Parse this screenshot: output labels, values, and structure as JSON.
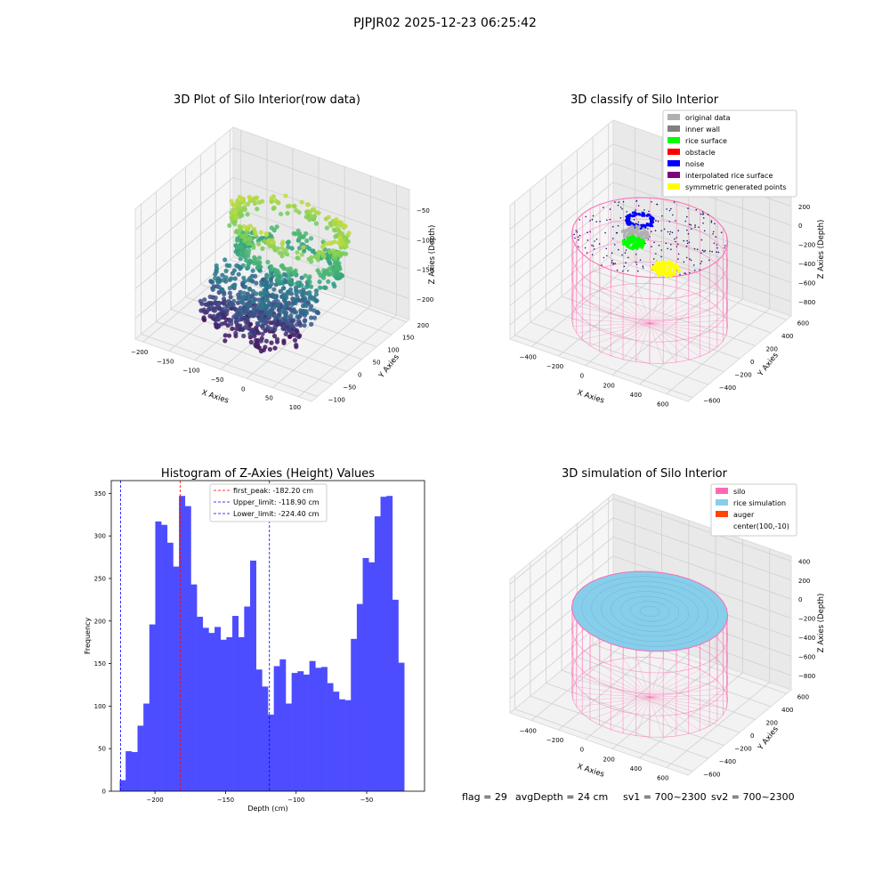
{
  "figure_title": "PJPJR02 2025-12-23 06:25:42",
  "footer": {
    "flag": "flag = 29",
    "avg_depth": "avgDepth = 24 cm",
    "sv1": "sv1 = 700~2300",
    "sv2": "sv2 = 700~2300"
  },
  "chart_data": [
    {
      "type": "scatter",
      "projection": "3d",
      "title": "3D Plot of Silo Interior(row data)",
      "xlabel": "X Axies",
      "ylabel": "Y Axies",
      "zlabel": "Z Axies (Depth)",
      "x_ticks": [
        -200,
        -150,
        -100,
        -50,
        0,
        50,
        100
      ],
      "y_ticks": [
        -100,
        -50,
        0,
        50,
        100,
        150,
        200
      ],
      "z_ticks": [
        -50,
        -100,
        -150,
        -200
      ],
      "xlim": [
        -215,
        125
      ],
      "ylim": [
        -120,
        210
      ],
      "zlim": [
        -235,
        -15
      ],
      "colormap": "viridis",
      "structures": [
        {
          "name": "",
          "kind": "ring",
          "center": [
            -10,
            40
          ],
          "radius": 95,
          "z": -50
        },
        {
          "name": "",
          "kind": "ring",
          "center": [
            -10,
            40
          ],
          "radius": 85,
          "z": -100
        },
        {
          "name": "",
          "kind": "blob",
          "center": [
            -40,
            10
          ],
          "radius": 90,
          "z": -160
        },
        {
          "name": "",
          "kind": "blob",
          "center": [
            -60,
            0
          ],
          "radius": 85,
          "z": -205
        }
      ]
    },
    {
      "type": "scatter",
      "projection": "3d",
      "title": "3D classify of Silo Interior",
      "xlabel": "X Axies",
      "ylabel": "Y Axies",
      "zlabel": "Z Axies (Depth)",
      "x_ticks": [
        -400,
        -200,
        0,
        200,
        400,
        600
      ],
      "y_ticks": [
        -600,
        -400,
        -200,
        0,
        200,
        400,
        600
      ],
      "z_ticks": [
        200,
        0,
        -200,
        -400,
        -600,
        -800
      ],
      "xlim": [
        -560,
        760
      ],
      "ylim": [
        -660,
        660
      ],
      "zlim": [
        -950,
        450
      ],
      "legend_position": "upper right",
      "legend": [
        {
          "label": "original data",
          "color": "#b0b0b0"
        },
        {
          "label": "inner wall",
          "color": "#808080"
        },
        {
          "label": "rice surface",
          "color": "#00ff00"
        },
        {
          "label": "obstacle",
          "color": "#ff0000"
        },
        {
          "label": "noise",
          "color": "#0000ff"
        },
        {
          "label": "interpolated rice surface",
          "color": "#800080"
        },
        {
          "label": "symmetric generated points",
          "color": "#ffff00"
        }
      ],
      "silo": {
        "center": [
          100,
          -10
        ],
        "radius": 500,
        "z_top": 0,
        "z_bottom": -900,
        "color": "#ff69b4"
      },
      "clusters": [
        {
          "name": "noise",
          "center": [
            -60,
            140
          ],
          "radius": 90,
          "z": 0,
          "color": "#0000ff"
        },
        {
          "name": "original data",
          "center": [
            -60,
            80
          ],
          "radius": 85,
          "z": -100,
          "color": "#b0b0b0"
        },
        {
          "name": "rice surface",
          "center": [
            -60,
            60
          ],
          "radius": 70,
          "z": -180,
          "color": "#00ff00"
        },
        {
          "name": "symmetric generated points",
          "center": [
            260,
            -80
          ],
          "radius": 90,
          "z": -200,
          "color": "#ffff00"
        }
      ]
    },
    {
      "type": "bar",
      "title": "Histogram of Z-Axies (Height) Values",
      "xlabel": "Depth (cm)",
      "ylabel": "Frequency",
      "bin_start": -225,
      "bin_width": 4.2,
      "values": [
        13,
        47,
        46,
        77,
        103,
        196,
        317,
        313,
        292,
        264,
        347,
        335,
        243,
        205,
        192,
        186,
        193,
        178,
        181,
        206,
        181,
        217,
        271,
        143,
        123,
        90,
        147,
        155,
        103,
        139,
        141,
        137,
        153,
        145,
        146,
        127,
        117,
        108,
        107,
        179,
        220,
        274,
        269,
        323,
        346,
        347,
        225,
        151
      ],
      "xlim": [
        -231,
        -9
      ],
      "ylim": [
        0,
        365
      ],
      "x_ticks": [
        -200,
        -150,
        -100,
        -50
      ],
      "y_ticks": [
        0,
        50,
        100,
        150,
        200,
        250,
        300,
        350
      ],
      "legend_position": "top-center",
      "reference_lines": [
        {
          "label": "first_peak: -182.20 cm",
          "x": -182.2,
          "color": "#ff0000"
        },
        {
          "label": "Upper_limit: -118.90 cm",
          "x": -118.9,
          "color": "#0000ff"
        },
        {
          "label": "Lower_limit: -224.40 cm",
          "x": -224.4,
          "color": "#0000ff"
        }
      ],
      "bar_color": "#4d4dff"
    },
    {
      "type": "surface",
      "projection": "3d",
      "title": "3D simulation of Silo Interior",
      "xlabel": "X Axies",
      "ylabel": "Y Axies",
      "zlabel": "Z Axies (Depth)",
      "x_ticks": [
        -400,
        -200,
        0,
        200,
        400,
        600
      ],
      "y_ticks": [
        -600,
        -400,
        -200,
        0,
        200,
        400,
        600
      ],
      "z_ticks": [
        400,
        200,
        0,
        -200,
        -400,
        -600,
        -800
      ],
      "xlim": [
        -560,
        760
      ],
      "ylim": [
        -660,
        660
      ],
      "zlim": [
        -950,
        450
      ],
      "legend_position": "upper right",
      "legend": [
        {
          "label": "silo",
          "color": "#ff69b4"
        },
        {
          "label": "rice simulation",
          "color": "#87ceeb"
        },
        {
          "label": "auger",
          "color": "#ff4500"
        },
        {
          "label": "center(100,-10)",
          "color": ""
        }
      ],
      "silo": {
        "center": [
          100,
          -10
        ],
        "radius": 500,
        "z_top": 0,
        "z_bottom": -900,
        "color": "#ff69b4"
      },
      "rice_surface": {
        "z": -150,
        "color": "#87ceeb"
      }
    }
  ]
}
